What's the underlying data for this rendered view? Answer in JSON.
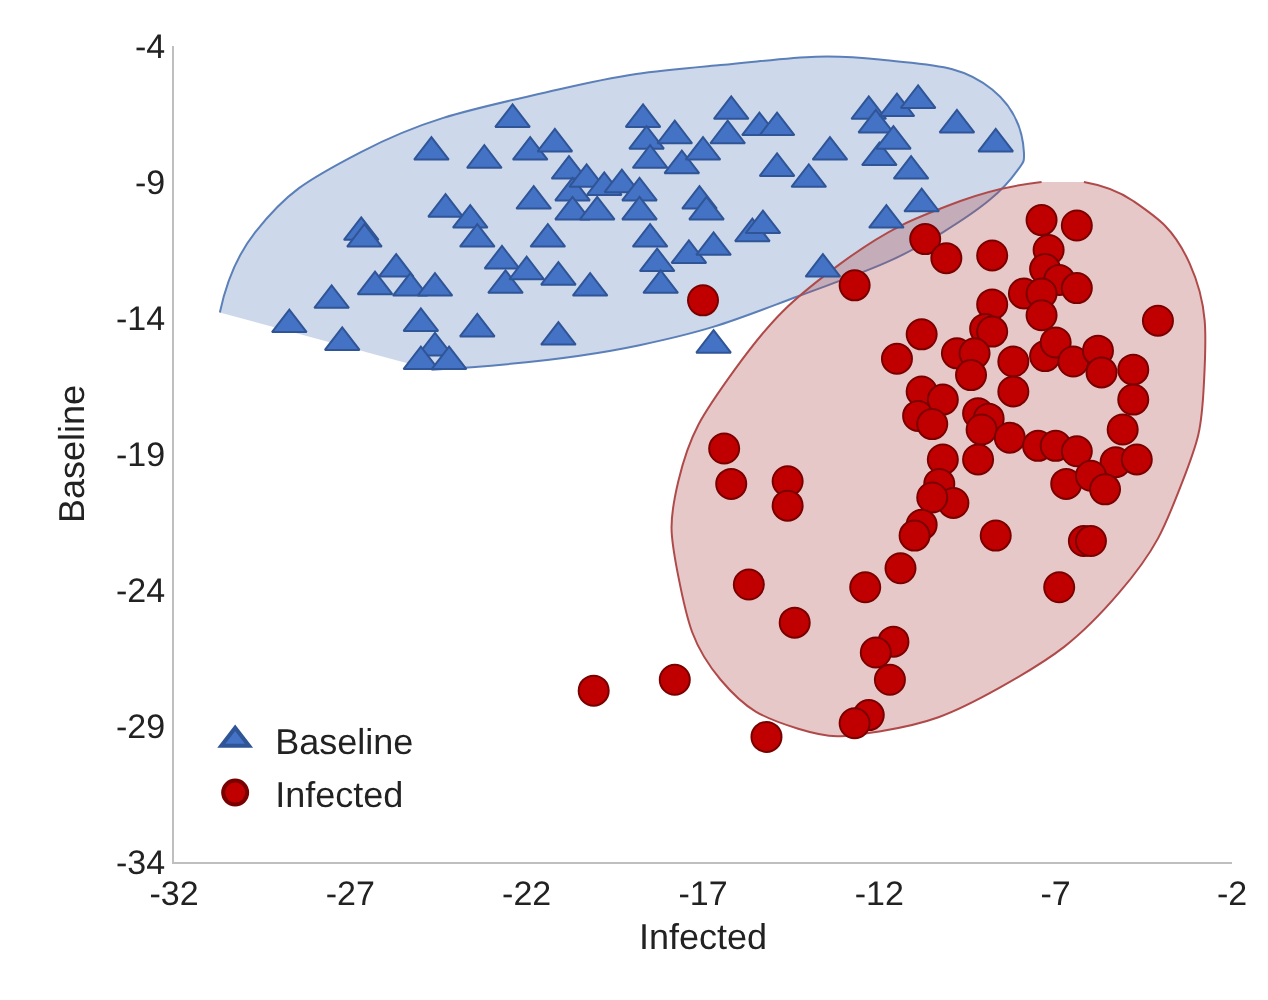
{
  "chart_data": {
    "type": "scatter",
    "xlabel": "Infected",
    "ylabel": "Baseline",
    "xlim": [
      -32,
      -2
    ],
    "xticks": [
      -32,
      -27,
      -22,
      -17,
      -12,
      -7,
      -2
    ],
    "ylim": [
      -34,
      -4
    ],
    "yticks": [
      -34,
      -29,
      -24,
      -19,
      -14,
      -9,
      -4
    ],
    "grid": false,
    "legend": "bottom left",
    "series": [
      {
        "type": "area",
        "color": "#5b7fb8",
        "x": [
          -30.7,
          -29.7,
          -26.7,
          -21.1,
          -16.5,
          -12.0,
          -8.8,
          -7.9,
          -8.1,
          -10.2,
          -14.3,
          -18.8,
          -24.7
        ],
        "values": [
          -13.8,
          -10.85,
          -7.9,
          -5.6,
          -4.7,
          -4.5,
          -5.6,
          -7.9,
          -8.6,
          -10.85,
          -13.2,
          -15.0,
          -15.9
        ]
      },
      {
        "type": "area",
        "color": "#b04a4a",
        "x": [
          -7.4,
          -9.7,
          -13.1,
          -16.1,
          -17.7,
          -17.7,
          -16.5,
          -14.3,
          -12.0,
          -8.6,
          -5.2,
          -3.4,
          -2.8,
          -3.2,
          -4.8,
          -6.2
        ],
        "values": [
          -9.0,
          -9.7,
          -12.0,
          -15.9,
          -20.0,
          -23.5,
          -27.3,
          -29.1,
          -29.2,
          -27.6,
          -24.1,
          -20.0,
          -16.5,
          -12.0,
          -9.7,
          -9.0
        ]
      },
      {
        "name": "Baseline",
        "color": "#4472c4",
        "marker": "triangle",
        "x": [
          -28.73,
          -27.53,
          -27.23,
          -26.69,
          -26.6,
          -26.3,
          -25.7,
          -25.3,
          -25.0,
          -24.6,
          -24.7,
          -24.3,
          -24.6,
          -25.0,
          -24.2,
          -23.6,
          -23.4,
          -23.4,
          -23.2,
          -22.7,
          -22.6,
          -22.4,
          -22.0,
          -21.9,
          -21.8,
          -21.4,
          -21.2,
          -21.1,
          -21.1,
          -20.8,
          -20.7,
          -20.7,
          -20.3,
          -20.2,
          -20.0,
          -19.8,
          -19.3,
          -18.8,
          -18.8,
          -18.7,
          -18.6,
          -18.5,
          -18.5,
          -18.3,
          -18.2,
          -17.8,
          -17.6,
          -17.4,
          -17.1,
          -17.0,
          -16.9,
          -16.7,
          -16.7,
          -16.3,
          -16.2,
          -15.6,
          -15.4,
          -15.3,
          -14.9,
          -14.9,
          -14.0,
          -13.6,
          -13.4,
          -12.3,
          -12.1,
          -12.0,
          -11.8,
          -11.6,
          -11.5,
          -11.1,
          -10.9,
          -10.8,
          -9.8,
          -8.7
        ],
        "values": [
          -14.24,
          -13.35,
          -14.9,
          -10.85,
          -11.1,
          -12.85,
          -12.2,
          -12.9,
          -14.2,
          -12.9,
          -7.9,
          -10.0,
          -15.1,
          -15.6,
          -15.6,
          -10.4,
          -11.1,
          -14.4,
          -8.2,
          -11.9,
          -12.8,
          -6.7,
          -12.3,
          -7.9,
          -9.7,
          -11.1,
          -7.6,
          -12.5,
          -14.7,
          -8.6,
          -9.4,
          -10.1,
          -8.9,
          -12.9,
          -10.1,
          -9.2,
          -9.1,
          -9.4,
          -10.1,
          -6.7,
          -7.5,
          -11.1,
          -8.2,
          -12.0,
          -12.8,
          -7.3,
          -8.4,
          -11.7,
          -9.7,
          -7.9,
          -10.1,
          -11.4,
          -15.0,
          -7.3,
          -6.4,
          -10.9,
          -7.0,
          -10.6,
          -7.0,
          -8.5,
          -8.9,
          -12.2,
          -7.9,
          -6.4,
          -6.9,
          -8.1,
          -10.4,
          -7.5,
          -6.3,
          -8.6,
          -6.0,
          -9.8,
          -6.9,
          -7.6
        ]
      },
      {
        "name": "Infected",
        "color": "#c00000",
        "marker": "circle",
        "x": [
          -17.0,
          -12.7,
          -10.7,
          -10.1,
          -8.8,
          -7.4,
          -6.4,
          -7.2,
          -7.3,
          -6.9,
          -6.4,
          -7.9,
          -7.4,
          -7.4,
          -8.8,
          -4.1,
          -10.8,
          -11.5,
          -9.8,
          -9.0,
          -8.8,
          -9.3,
          -8.2,
          -7.3,
          -7.0,
          -6.5,
          -5.8,
          -5.7,
          -4.8,
          -9.4,
          -8.2,
          -10.8,
          -10.9,
          -10.2,
          -10.5,
          -9.2,
          -8.9,
          -9.1,
          -8.3,
          -7.5,
          -7.0,
          -6.4,
          -5.1,
          -5.3,
          -4.7,
          -4.8,
          -10.2,
          -9.2,
          -10.3,
          -9.9,
          -10.5,
          -6.7,
          -6.0,
          -5.6,
          -10.8,
          -11.0,
          -8.7,
          -6.2,
          -6.0,
          -11.4,
          -12.4,
          -6.9,
          -11.6,
          -12.1,
          -11.7,
          -12.3,
          -12.7,
          -15.2,
          -17.8,
          -20.1,
          -16.4,
          -16.2,
          -14.6,
          -14.6,
          -15.7,
          -14.4
        ],
        "values": [
          -13.35,
          -12.8,
          -11.1,
          -11.8,
          -11.7,
          -10.4,
          -10.6,
          -11.5,
          -12.2,
          -12.6,
          -12.9,
          -13.1,
          -13.1,
          -13.9,
          -13.5,
          -14.1,
          -14.6,
          -15.5,
          -15.3,
          -14.4,
          -14.5,
          -15.3,
          -15.6,
          -15.4,
          -14.9,
          -15.6,
          -15.2,
          -16.0,
          -15.9,
          -16.1,
          -16.7,
          -16.7,
          -17.6,
          -17.0,
          -17.9,
          -17.5,
          -17.7,
          -18.1,
          -18.4,
          -18.7,
          -18.7,
          -18.9,
          -18.1,
          -19.3,
          -19.2,
          -17.0,
          -19.2,
          -19.2,
          -20.1,
          -20.8,
          -20.6,
          -20.1,
          -19.8,
          -20.3,
          -21.6,
          -22.0,
          -22.0,
          -22.2,
          -22.2,
          -23.2,
          -23.9,
          -23.9,
          -25.9,
          -26.3,
          -27.3,
          -28.6,
          -28.9,
          -29.4,
          -27.3,
          -27.7,
          -18.8,
          -20.1,
          -20.0,
          -20.9,
          -23.8,
          -25.2
        ]
      }
    ]
  }
}
